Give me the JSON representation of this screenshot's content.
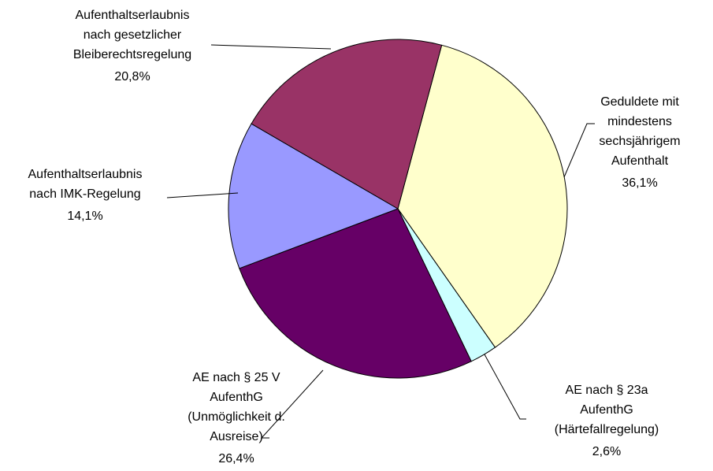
{
  "chart_data": {
    "type": "pie",
    "categories": [
      [
        "Geduldete mit",
        "mindestens",
        "sechsjährigem",
        "Aufenthalt"
      ],
      [
        "AE nach § 23a",
        "AufenthG",
        "(Härtefallregelung)"
      ],
      [
        "AE nach § 25 V",
        "AufenthG",
        "(Unmöglichkeit d.",
        "Ausreise)"
      ],
      [
        "Aufenthaltserlaubnis",
        "nach IMK-Regelung"
      ],
      [
        "Aufenthaltserlaubnis",
        "nach gesetzlicher",
        "Bleiberechtsregelung"
      ]
    ],
    "values": [
      36.1,
      2.6,
      26.4,
      14.1,
      20.8
    ],
    "value_labels": [
      "36,1%",
      "2,6%",
      "26,4%",
      "14,1%",
      "20,8%"
    ],
    "colors": [
      "#ffffcc",
      "#ccffff",
      "#660066",
      "#9999ff",
      "#993366"
    ]
  }
}
